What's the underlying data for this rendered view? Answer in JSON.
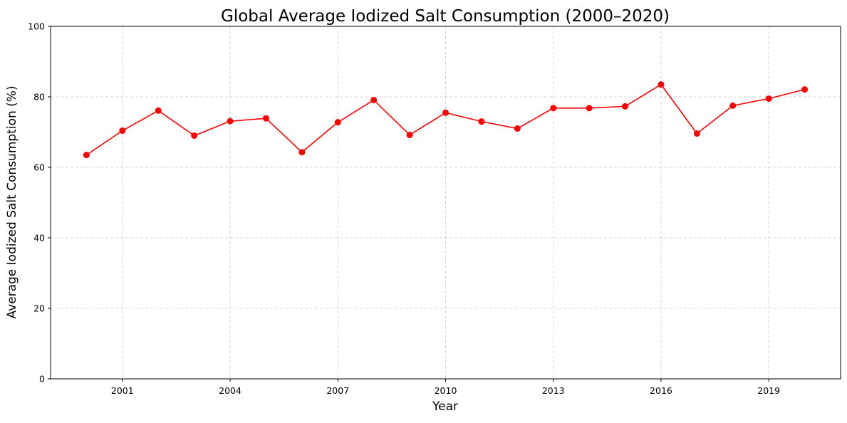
{
  "chart_data": {
    "type": "line",
    "title": "Global Average Iodized Salt Consumption (2000–2020)",
    "xlabel": "Year",
    "ylabel": "Average Iodized Salt Consumption (%)",
    "xlim": [
      1999,
      2021
    ],
    "ylim": [
      0,
      100
    ],
    "x_ticks": [
      2001,
      2004,
      2007,
      2010,
      2013,
      2016,
      2019
    ],
    "y_ticks": [
      0,
      20,
      40,
      60,
      80,
      100
    ],
    "grid": true,
    "legend": "none",
    "line_color": "#ff0000",
    "marker": "circle",
    "x": [
      2000,
      2001,
      2002,
      2003,
      2004,
      2005,
      2006,
      2007,
      2008,
      2009,
      2010,
      2011,
      2012,
      2013,
      2014,
      2015,
      2016,
      2017,
      2018,
      2019,
      2020
    ],
    "values": [
      63.5,
      70.4,
      76.1,
      69.0,
      73.1,
      73.9,
      64.3,
      72.8,
      79.1,
      69.2,
      75.5,
      73.0,
      71.0,
      76.8,
      76.8,
      77.3,
      83.5,
      69.6,
      77.5,
      79.5,
      82.1
    ]
  }
}
